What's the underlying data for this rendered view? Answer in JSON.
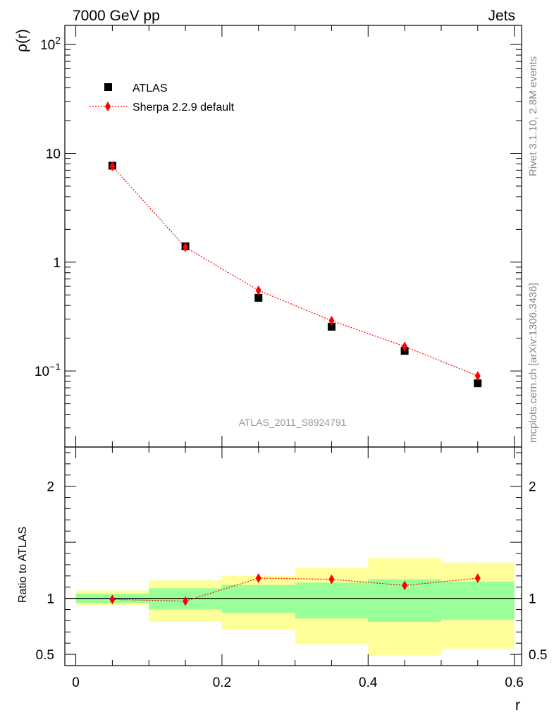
{
  "header": {
    "left": "7000 GeV pp",
    "right": "Jets"
  },
  "side_labels": {
    "rivet": "Rivet 3.1.10,  2.8M events",
    "mcplots": "mcplots.cern.ch [arXiv:1306.3436]"
  },
  "colors": {
    "atlas_marker": "#000000",
    "sherpa": "#ff0000",
    "band_inner": "#99ff99",
    "band_outer": "#ffff99"
  },
  "chart_data": [
    {
      "type": "scatter",
      "panel": "main",
      "ylabel": "ρ(r)",
      "yscale": "log",
      "ylim": [
        0.02,
        150
      ],
      "xlim": [
        -0.015,
        0.61
      ],
      "y_tick_labels": [
        "10",
        "1"
      ],
      "watermark": "ATLAS_2011_S8924791",
      "legend_position": "top-left",
      "series": [
        {
          "name": "ATLAS",
          "marker": "square",
          "x": [
            0.05,
            0.15,
            0.25,
            0.35,
            0.45,
            0.55
          ],
          "y": [
            7.7,
            1.4,
            0.47,
            0.255,
            0.153,
            0.077
          ]
        },
        {
          "name": "Sherpa 2.2.9 default",
          "marker": "diamond",
          "line": "dotted",
          "x": [
            0.05,
            0.15,
            0.25,
            0.35,
            0.45,
            0.55
          ],
          "y": [
            7.6,
            1.37,
            0.55,
            0.29,
            0.168,
            0.09
          ]
        }
      ]
    },
    {
      "type": "line",
      "panel": "ratio",
      "ylabel": "Ratio to ATLAS",
      "xlabel": "r",
      "ylim": [
        0.4,
        2.35
      ],
      "xlim": [
        -0.015,
        0.61
      ],
      "x_tick_labels": [
        "0",
        "0.2",
        "0.4",
        "0.6"
      ],
      "y_tick_labels": [
        "2",
        "1",
        "0.5"
      ],
      "bins": [
        {
          "lo": 0.0,
          "hi": 0.1,
          "inner": [
            0.96,
            1.04
          ],
          "outer": [
            0.94,
            1.07
          ]
        },
        {
          "lo": 0.1,
          "hi": 0.2,
          "inner": [
            0.9,
            1.09
          ],
          "outer": [
            0.79,
            1.16
          ]
        },
        {
          "lo": 0.2,
          "hi": 0.3,
          "inner": [
            0.87,
            1.12
          ],
          "outer": [
            0.72,
            1.2
          ]
        },
        {
          "lo": 0.3,
          "hi": 0.4,
          "inner": [
            0.82,
            1.14
          ],
          "outer": [
            0.59,
            1.27
          ]
        },
        {
          "lo": 0.4,
          "hi": 0.5,
          "inner": [
            0.79,
            1.17
          ],
          "outer": [
            0.49,
            1.36
          ]
        },
        {
          "lo": 0.5,
          "hi": 0.6,
          "inner": [
            0.81,
            1.15
          ],
          "outer": [
            0.55,
            1.32
          ]
        }
      ],
      "series": [
        {
          "name": "Sherpa 2.2.9 default",
          "marker": "diamond",
          "line": "dotted",
          "x": [
            0.05,
            0.15,
            0.25,
            0.35,
            0.45,
            0.55
          ],
          "y": [
            0.99,
            0.975,
            1.18,
            1.17,
            1.115,
            1.18
          ]
        }
      ]
    }
  ]
}
